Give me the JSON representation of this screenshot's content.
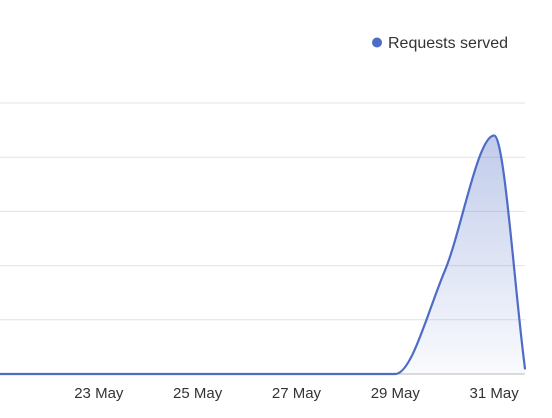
{
  "chart_data": {
    "type": "area",
    "legend": {
      "position": "top-right",
      "entries": [
        {
          "label": "Requests served",
          "color": "#4e6cc6"
        }
      ]
    },
    "x_ticks": [
      "23 May",
      "25 May",
      "27 May",
      "29 May",
      "31 May"
    ],
    "x_range": [
      "2024-05-21",
      "2024-05-31T15:00"
    ],
    "y_range": [
      0,
      100
    ],
    "grid": {
      "horizontal": true,
      "vertical": false
    },
    "series": [
      {
        "name": "Requests served",
        "color": "#4e6cc6",
        "points": [
          {
            "x": "2024-05-21",
            "y": 0
          },
          {
            "x": "2024-05-22",
            "y": 0
          },
          {
            "x": "2024-05-23",
            "y": 0
          },
          {
            "x": "2024-05-24",
            "y": 0
          },
          {
            "x": "2024-05-25",
            "y": 0
          },
          {
            "x": "2024-05-26",
            "y": 0
          },
          {
            "x": "2024-05-27",
            "y": 0
          },
          {
            "x": "2024-05-28",
            "y": 0
          },
          {
            "x": "2024-05-29",
            "y": 0
          },
          {
            "x": "2024-05-30",
            "y": 38
          },
          {
            "x": "2024-05-31",
            "y": 88
          },
          {
            "x": "2024-05-31T15:00",
            "y": 2
          }
        ]
      }
    ]
  }
}
